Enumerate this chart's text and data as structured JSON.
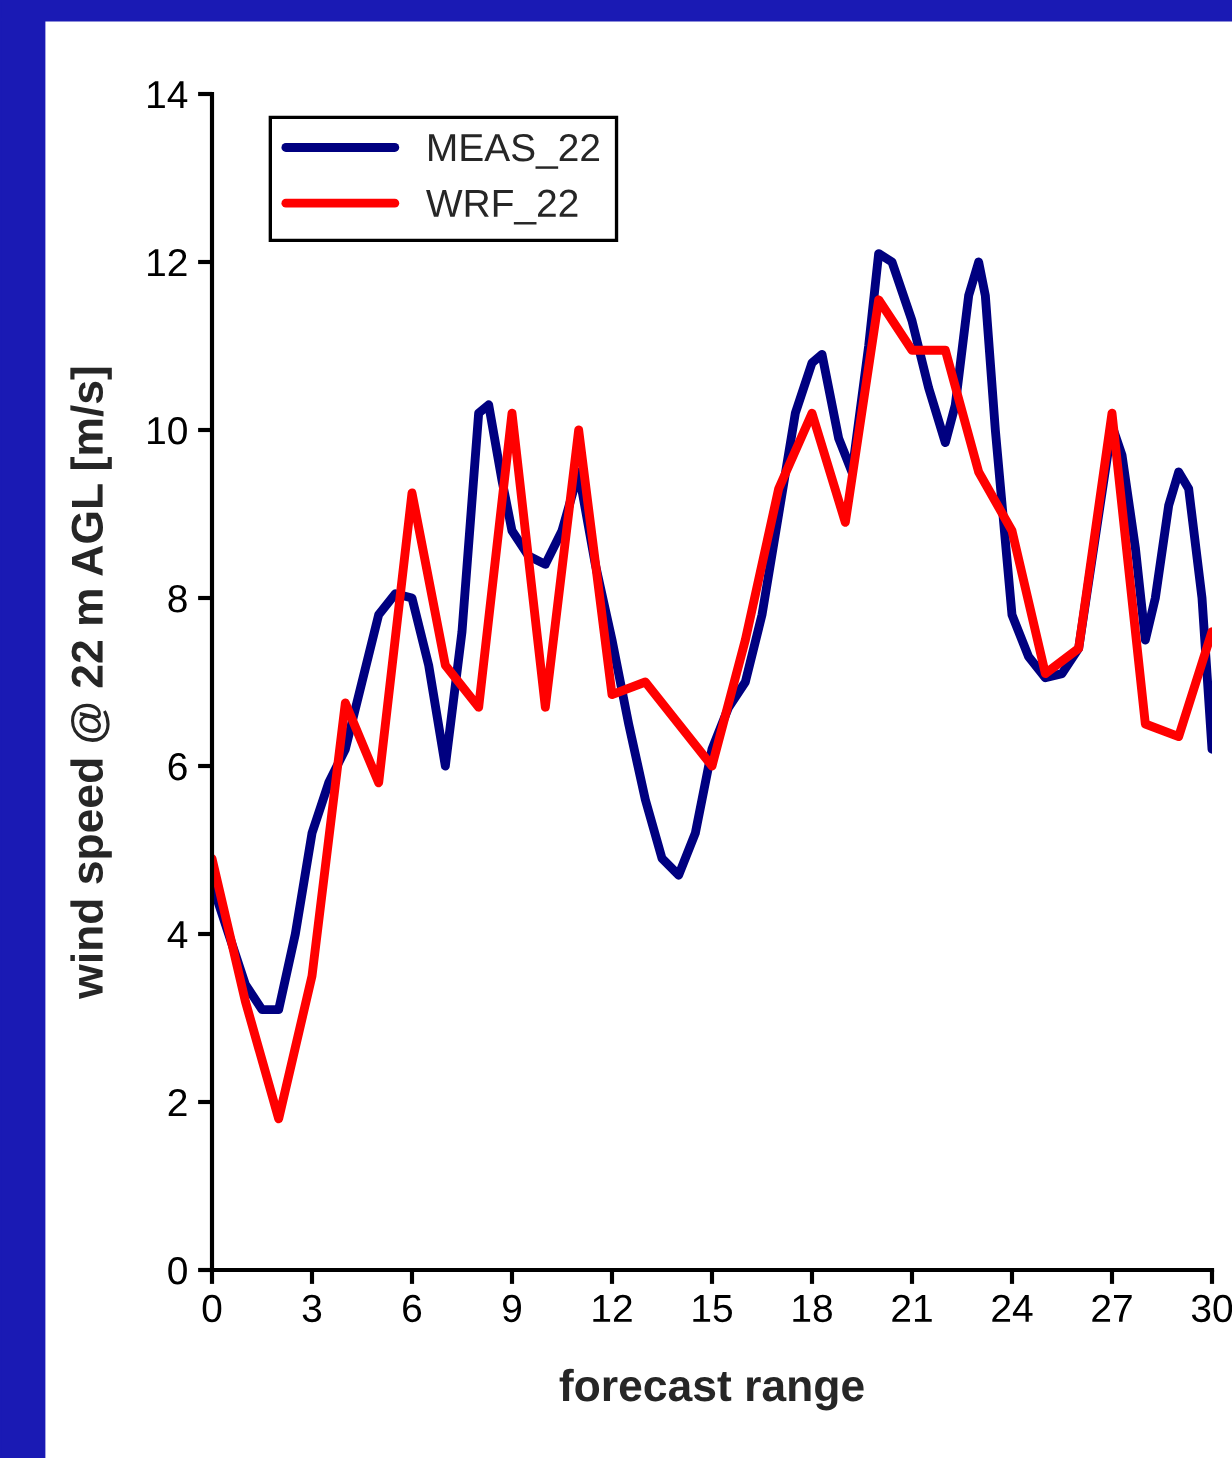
{
  "chart_data": {
    "type": "line",
    "xlabel": "forecast range",
    "ylabel": "wind speed @ 22 m AGL [m/s]",
    "xlim": [
      0,
      30
    ],
    "xticks": [
      0,
      3,
      6,
      9,
      12,
      15,
      18,
      21,
      24,
      27,
      30
    ],
    "ylim": [
      0,
      14
    ],
    "yticks": [
      0,
      2,
      4,
      6,
      8,
      10,
      12,
      14
    ],
    "grid": false,
    "legend": "top left",
    "marker": "none",
    "line_style": "solid",
    "series": [
      {
        "name": "MEAS_22",
        "color": "#000080",
        "x": [
          0,
          0.5,
          1,
          1.5,
          2,
          2.5,
          3,
          3.5,
          4,
          4.5,
          5,
          5.5,
          6,
          6.5,
          7,
          7.5,
          8,
          8.3,
          8.7,
          9,
          9.5,
          10,
          10.5,
          11,
          11.5,
          12,
          12.5,
          13,
          13.5,
          14,
          14.5,
          15,
          15.5,
          16,
          16.5,
          17,
          17.5,
          18,
          18.3,
          18.8,
          19.2,
          19.7,
          20,
          20.4,
          21,
          21.5,
          22,
          22.3,
          22.7,
          23,
          23.2,
          23.5,
          24,
          24.5,
          25,
          25.5,
          26,
          27,
          27.3,
          27.7,
          28,
          28.3,
          28.7,
          29,
          29.3,
          29.7,
          30
        ],
        "values": [
          4.6,
          4.0,
          3.4,
          3.1,
          3.1,
          4.0,
          5.2,
          5.8,
          6.2,
          7.0,
          7.8,
          8.05,
          8.0,
          7.2,
          6.0,
          7.6,
          10.2,
          10.3,
          9.4,
          8.8,
          8.5,
          8.4,
          8.8,
          9.5,
          8.4,
          7.5,
          6.5,
          5.6,
          4.9,
          4.7,
          5.2,
          6.2,
          6.7,
          7.0,
          7.8,
          9.0,
          10.2,
          10.8,
          10.9,
          9.9,
          9.5,
          11.0,
          12.1,
          12.0,
          11.3,
          10.5,
          9.85,
          10.3,
          11.6,
          12.0,
          11.6,
          10.0,
          7.8,
          7.3,
          7.05,
          7.1,
          7.4,
          10.05,
          9.7,
          8.6,
          7.5,
          8.0,
          9.1,
          9.5,
          9.3,
          8.0,
          6.2
        ]
      },
      {
        "name": "WRF_22",
        "color": "#ff0000",
        "x": [
          0,
          1,
          2,
          3,
          4,
          5,
          6,
          7,
          8,
          9,
          10,
          11,
          12,
          13,
          14,
          15,
          16,
          17,
          18,
          19,
          20,
          21,
          22,
          23,
          24,
          25,
          26,
          27,
          28,
          29,
          30
        ],
        "values": [
          4.9,
          3.2,
          1.8,
          3.5,
          6.75,
          5.8,
          9.25,
          7.2,
          6.7,
          10.2,
          6.7,
          10.0,
          6.85,
          7.0,
          6.5,
          6.0,
          7.5,
          9.3,
          10.2,
          8.9,
          11.55,
          10.95,
          10.95,
          9.5,
          8.8,
          7.1,
          7.4,
          10.2,
          6.5,
          6.35,
          7.6
        ]
      }
    ]
  }
}
